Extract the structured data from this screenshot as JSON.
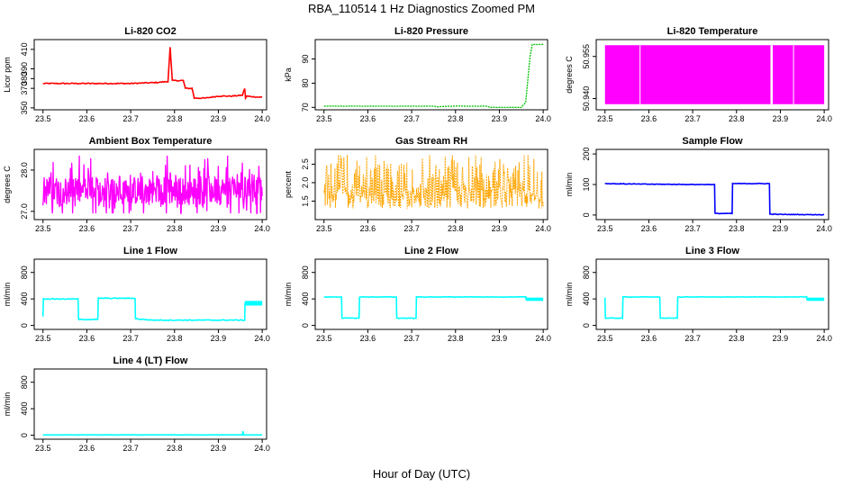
{
  "figure": {
    "title": "RBA_110514  1 Hz Diagnostics Zoomed PM",
    "xlabel": "Hour of Day (UTC)"
  },
  "chart_data": [
    {
      "id": "co2",
      "type": "line",
      "title": "Li-820 CO2",
      "ylabel": "Licor ppm",
      "color": "#ff0000",
      "xlim": [
        23.48,
        24.01
      ],
      "ylim": [
        348,
        420
      ],
      "xticks": [
        "23.5",
        "23.6",
        "23.7",
        "23.8",
        "23.9",
        "24.0"
      ],
      "yticks": [
        "350",
        "370",
        "380",
        "390",
        "410"
      ],
      "series": [
        {
          "name": "CO2",
          "x": [
            23.5,
            23.6,
            23.7,
            23.76,
            23.785,
            23.79,
            23.795,
            23.8,
            23.82,
            23.825,
            23.84,
            23.845,
            23.87,
            23.9,
            23.93,
            23.955,
            23.96,
            23.962,
            23.965,
            23.99,
            24.0
          ],
          "y": [
            375,
            375,
            375,
            376,
            377,
            412,
            378,
            378,
            378,
            370,
            370,
            360,
            360,
            362,
            362,
            363,
            370,
            360,
            362,
            361,
            361
          ]
        }
      ]
    },
    {
      "id": "pressure",
      "type": "line",
      "title": "Li-820 Pressure",
      "ylabel": "kPa",
      "color": "#00c000",
      "xlim": [
        23.48,
        24.01
      ],
      "ylim": [
        69,
        98
      ],
      "xticks": [
        "23.5",
        "23.6",
        "23.7",
        "23.8",
        "23.9",
        "24.0"
      ],
      "yticks": [
        "70",
        "80",
        "90"
      ],
      "series": [
        {
          "name": "Pressure",
          "x": [
            23.5,
            23.6,
            23.7,
            23.75,
            23.76,
            23.78,
            23.8,
            23.87,
            23.88,
            23.9,
            23.95,
            23.96,
            23.97,
            23.975,
            23.99,
            24.0
          ],
          "y": [
            70.5,
            70.5,
            70.5,
            70.5,
            70.2,
            70.5,
            70.5,
            70.5,
            70,
            70,
            70,
            72,
            91,
            96,
            96,
            96
          ]
        }
      ]
    },
    {
      "id": "licor_temp",
      "type": "line",
      "title": "Li-820 Temperature",
      "ylabel": "degrees C",
      "color": "#ff00ff",
      "xlim": [
        23.48,
        24.01
      ],
      "ylim": [
        50.936,
        50.961
      ],
      "xticks": [
        "23.5",
        "23.6",
        "23.7",
        "23.8",
        "23.9",
        "24.0"
      ],
      "yticks": [
        "50.940",
        "50.955"
      ],
      "series": [
        {
          "name": "Temperature",
          "x": [
            23.5,
            24.0
          ],
          "y": [
            50.938,
            50.959
          ]
        }
      ]
    },
    {
      "id": "box_temp",
      "type": "line",
      "title": "Ambient Box Temperature",
      "ylabel": "degrees C",
      "color": "#ff00ff",
      "xlim": [
        23.48,
        24.01
      ],
      "ylim": [
        26.8,
        28.5
      ],
      "xticks": [
        "23.5",
        "23.6",
        "23.7",
        "23.8",
        "23.9",
        "24.0"
      ],
      "yticks": [
        "27.0",
        "28.0"
      ],
      "series": [
        {
          "name": "Box Temperature",
          "x": [
            23.5,
            24.0
          ],
          "y": [
            26.95,
            28.35
          ]
        }
      ]
    },
    {
      "id": "rh",
      "type": "line",
      "title": "Gas Stream RH",
      "ylabel": "percent",
      "color": "#ffa500",
      "xlim": [
        23.48,
        24.01
      ],
      "ylim": [
        1.0,
        2.9
      ],
      "xticks": [
        "23.5",
        "23.6",
        "23.7",
        "23.8",
        "23.9",
        "24.0"
      ],
      "yticks": [
        "1.5",
        "2.0",
        "2.5"
      ],
      "series": [
        {
          "name": "RH",
          "x": [
            23.5,
            24.0
          ],
          "y": [
            1.15,
            2.75
          ]
        }
      ]
    },
    {
      "id": "sample_flow",
      "type": "line",
      "title": "Sample Flow",
      "ylabel": "ml/min",
      "color": "#0000ff",
      "xlim": [
        23.48,
        24.01
      ],
      "ylim": [
        -15,
        215
      ],
      "xticks": [
        "23.5",
        "23.6",
        "23.7",
        "23.8",
        "23.9",
        "24.0"
      ],
      "yticks": [
        "0",
        "100",
        "200"
      ],
      "series": [
        {
          "name": "Sample Flow",
          "x": [
            23.5,
            23.6,
            23.7,
            23.75,
            23.751,
            23.79,
            23.791,
            23.875,
            23.876,
            23.9,
            24.0
          ],
          "y": [
            103,
            101,
            100,
            100,
            5,
            5,
            103,
            103,
            3,
            2,
            1
          ]
        }
      ]
    },
    {
      "id": "line1",
      "type": "line",
      "title": "Line 1 Flow",
      "ylabel": "ml/min",
      "color": "#00ffff",
      "xlim": [
        23.48,
        24.01
      ],
      "ylim": [
        -60,
        1000
      ],
      "xticks": [
        "23.5",
        "23.6",
        "23.7",
        "23.8",
        "23.9",
        "24.0"
      ],
      "yticks": [
        "0",
        "400",
        "800"
      ],
      "series": [
        {
          "name": "Line 1",
          "x": [
            23.5,
            23.501,
            23.58,
            23.581,
            23.625,
            23.626,
            23.71,
            23.711,
            23.75,
            23.8,
            23.955,
            23.96,
            23.961,
            24.0
          ],
          "y": [
            140,
            400,
            400,
            90,
            90,
            410,
            410,
            100,
            80,
            80,
            80,
            80,
            340,
            340
          ]
        }
      ]
    },
    {
      "id": "line2",
      "type": "line",
      "title": "Line 2 Flow",
      "ylabel": "ml/min",
      "color": "#00ffff",
      "xlim": [
        23.48,
        24.01
      ],
      "ylim": [
        -60,
        1000
      ],
      "xticks": [
        "23.5",
        "23.6",
        "23.7",
        "23.8",
        "23.9",
        "24.0"
      ],
      "yticks": [
        "0",
        "400",
        "800"
      ],
      "series": [
        {
          "name": "Line 2",
          "x": [
            23.5,
            23.54,
            23.541,
            23.58,
            23.581,
            23.665,
            23.666,
            23.71,
            23.711,
            23.96,
            23.961,
            24.0
          ],
          "y": [
            430,
            430,
            110,
            110,
            430,
            430,
            110,
            110,
            430,
            430,
            390,
            390
          ]
        }
      ]
    },
    {
      "id": "line3",
      "type": "line",
      "title": "Line 3 Flow",
      "ylabel": "ml/min",
      "color": "#00ffff",
      "xlim": [
        23.48,
        24.01
      ],
      "ylim": [
        -60,
        1000
      ],
      "xticks": [
        "23.5",
        "23.6",
        "23.7",
        "23.8",
        "23.9",
        "24.0"
      ],
      "yticks": [
        "0",
        "400",
        "800"
      ],
      "series": [
        {
          "name": "Line 3",
          "x": [
            23.5,
            23.501,
            23.54,
            23.541,
            23.625,
            23.626,
            23.665,
            23.666,
            23.96,
            23.961,
            24.0
          ],
          "y": [
            420,
            110,
            110,
            430,
            430,
            110,
            110,
            430,
            430,
            390,
            390
          ]
        }
      ]
    },
    {
      "id": "line4",
      "type": "line",
      "title": "Line 4 (LT) Flow",
      "ylabel": "ml/min",
      "color": "#00ffff",
      "xlim": [
        23.48,
        24.01
      ],
      "ylim": [
        -60,
        1000
      ],
      "xticks": [
        "23.5",
        "23.6",
        "23.7",
        "23.8",
        "23.9",
        "24.0"
      ],
      "yticks": [
        "0",
        "400",
        "800"
      ],
      "series": [
        {
          "name": "Line 4",
          "x": [
            23.5,
            23.955,
            23.956,
            23.958,
            23.96,
            24.0
          ],
          "y": [
            5,
            5,
            60,
            5,
            5,
            5
          ]
        }
      ]
    }
  ]
}
